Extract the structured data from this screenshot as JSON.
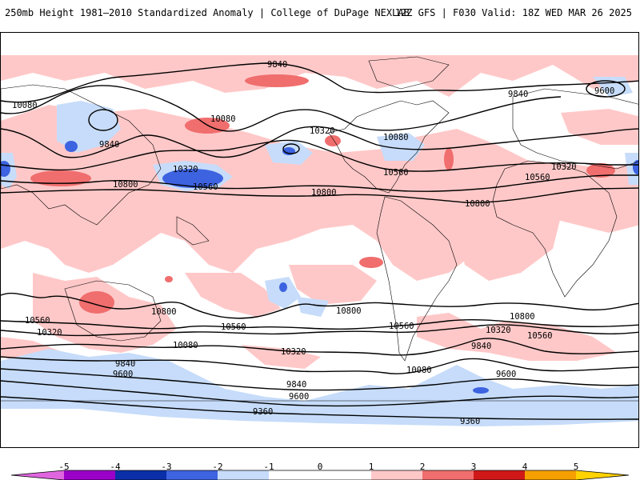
{
  "header": {
    "left_title": "250mb Height 1981–2010 Standardized Anomaly | College of DuPage NEXLAB",
    "right_title": "12Z GFS | F030 Valid: 18Z WED MAR 26 2025"
  },
  "colorbar": {
    "ticks": [
      "-5",
      "-4",
      "-3",
      "-2",
      "-1",
      "0",
      "1",
      "2",
      "3",
      "4",
      "5"
    ],
    "colors": [
      "#e066e0",
      "#9a00c8",
      "#0a2fa8",
      "#3d63e0",
      "#c6dcfa",
      "#ffffff",
      "#ffc8c8",
      "#f06e6e",
      "#d01818",
      "#f5a000",
      "#ffd200"
    ]
  },
  "contour_labels": [
    "9840",
    "10080",
    "10080",
    "9840",
    "10320",
    "10560",
    "10800",
    "10320",
    "10080",
    "10560",
    "10800",
    "9840",
    "9600",
    "10320",
    "10560",
    "10800",
    "10800",
    "10560",
    "10320",
    "10080",
    "9840",
    "9600",
    "9360",
    "10560",
    "10800",
    "10080",
    "10320",
    "9840",
    "9600",
    "10560",
    "10800",
    "10320",
    "10560",
    "9840",
    "9600",
    "9360"
  ],
  "legend": {
    "anomaly_colors": {
      "strong_neg": "#3d63e0",
      "weak_neg": "#c6dcfa",
      "weak_pos": "#ffc8c8",
      "mod_pos": "#f06e6e"
    }
  }
}
